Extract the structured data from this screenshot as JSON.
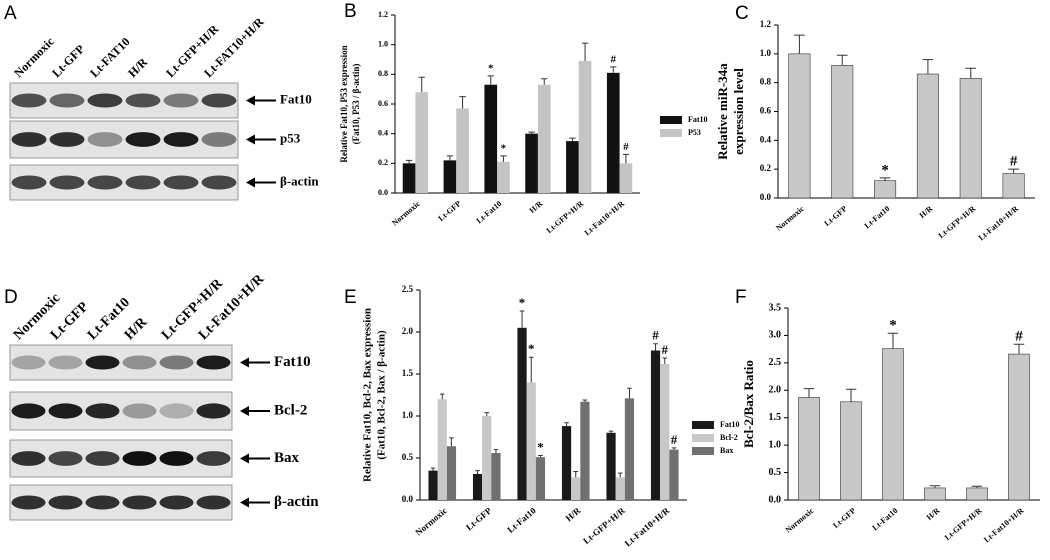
{
  "panel_labels": [
    "A",
    "B",
    "C",
    "D",
    "E",
    "F"
  ],
  "blots": {
    "A": {
      "lanes": [
        "Normoxic",
        "Lt-GFP",
        "Lt-FAT10",
        "H/R",
        "Lt-GFP+H/R",
        "Lt-FAT10+H/R"
      ],
      "bands": [
        "Fat10",
        "p53",
        "β-actin"
      ]
    },
    "D": {
      "lanes": [
        "Normoxic",
        "Lt-GFP",
        "Lt-Fat10",
        "H/R",
        "Lt-GFP+H/R",
        "Lt-Fat10+H/R"
      ],
      "bands": [
        "Fat10",
        "Bcl-2",
        "Bax",
        "β-actin"
      ]
    }
  },
  "chart_data": [
    {
      "type": "bar",
      "ylabel": [
        "Relative Fat10, P53 expression",
        "(Fat10, P53 / β-actin)"
      ],
      "categories": [
        "Normoxic",
        "Lt-GFP",
        "Lt-Fat10",
        "H/R",
        "Lt-GFP+H/R",
        "Lt-Fat10+H/R"
      ],
      "series": [
        {
          "name": "Fat10",
          "color": "#111111",
          "values": [
            0.2,
            0.22,
            0.73,
            0.4,
            0.35,
            0.81
          ],
          "errors": [
            0.02,
            0.03,
            0.06,
            0.01,
            0.02,
            0.04
          ],
          "markers": [
            null,
            null,
            "*",
            null,
            null,
            "#"
          ]
        },
        {
          "name": "P53",
          "color": "#c4c4c4",
          "values": [
            0.68,
            0.57,
            0.21,
            0.73,
            0.89,
            0.2
          ],
          "errors": [
            0.1,
            0.08,
            0.04,
            0.04,
            0.12,
            0.06
          ],
          "markers": [
            null,
            null,
            "*",
            null,
            null,
            "#"
          ]
        }
      ],
      "ylim": [
        0,
        1.2
      ],
      "yticks": [
        {
          "value": 0,
          "label": "0.0"
        },
        0.2,
        0.4,
        0.6,
        0.8,
        {
          "value": 1,
          "label": "1.0"
        },
        1.2
      ]
    },
    {
      "type": "bar",
      "ylabel": [
        "Relative miR-34a",
        "expression level"
      ],
      "categories": [
        "Normoxic",
        "Lt-GFP",
        "Lt-Fat10",
        "H/R",
        "Lt-GFP+H/R",
        "Lt-Fat10+H/R"
      ],
      "series": [
        {
          "color": "#c8c8c8",
          "values": [
            1.0,
            0.92,
            0.12,
            0.86,
            0.83,
            0.17
          ],
          "errors": [
            0.13,
            0.07,
            0.02,
            0.1,
            0.07,
            0.03
          ],
          "markers": [
            null,
            null,
            "*",
            null,
            null,
            "#"
          ]
        }
      ],
      "ylim": [
        0,
        1.2
      ],
      "yticks": [
        {
          "value": 0,
          "label": "0.0"
        },
        0.2,
        0.4,
        0.6,
        0.8,
        {
          "value": 1,
          "label": "1.0"
        },
        1.2
      ]
    },
    {
      "type": "bar",
      "ylabel": [
        "Relative Fat10, Bcl-2, Bax expression",
        "(Fat10, Bcl-2, Bax / β-actin)"
      ],
      "categories": [
        "Normoxic",
        "Lt-GFP",
        "Lt-Fat10",
        "H/R",
        "Lt-GFP+H/R",
        "Lt-Fat10+H/R"
      ],
      "series": [
        {
          "name": "Fat10",
          "color": "#1a1a1a",
          "values": [
            0.35,
            0.31,
            2.05,
            0.88,
            0.8,
            1.78
          ],
          "errors": [
            0.03,
            0.04,
            0.2,
            0.04,
            0.02,
            0.08
          ],
          "markers": [
            null,
            null,
            "*",
            null,
            null,
            "#"
          ]
        },
        {
          "name": "Bcl-2",
          "color": "#c8c8c8",
          "values": [
            1.2,
            1.0,
            1.4,
            0.27,
            0.27,
            1.62
          ],
          "errors": [
            0.06,
            0.04,
            0.3,
            0.07,
            0.05,
            0.07
          ],
          "markers": [
            null,
            null,
            "*",
            null,
            null,
            "#"
          ]
        },
        {
          "name": "Bax",
          "color": "#707070",
          "values": [
            0.64,
            0.56,
            0.51,
            1.17,
            1.21,
            0.6
          ],
          "errors": [
            0.1,
            0.04,
            0.02,
            0.02,
            0.12,
            0.02
          ],
          "markers": [
            null,
            null,
            "*",
            null,
            null,
            "#"
          ]
        }
      ],
      "ylim": [
        0,
        2.5
      ],
      "yticks": [
        {
          "value": 0,
          "label": "0.0"
        },
        0.5,
        {
          "value": 1,
          "label": "1.0"
        },
        1.5,
        {
          "value": 2,
          "label": "2.0"
        },
        2.5
      ]
    },
    {
      "type": "bar",
      "ylabel": [
        "Bcl-2/Bax  Ratio"
      ],
      "categories": [
        "Normoxic",
        "Lt-GFP",
        "Lt-Fat10",
        "H/R",
        "Lt-GFP+H/R",
        "Lt-Fat10+H/R"
      ],
      "series": [
        {
          "color": "#c8c8c8",
          "values": [
            1.87,
            1.79,
            2.76,
            0.22,
            0.22,
            2.66
          ],
          "errors": [
            0.16,
            0.23,
            0.28,
            0.04,
            0.03,
            0.18
          ],
          "markers": [
            null,
            null,
            "*",
            null,
            null,
            "#"
          ]
        }
      ],
      "ylim": [
        0,
        3.5
      ],
      "yticks": [
        {
          "value": 0,
          "label": "0.0"
        },
        0.5,
        {
          "value": 1,
          "label": "1.0"
        },
        1.5,
        {
          "value": 2,
          "label": "2.0"
        },
        2.5,
        {
          "value": 3,
          "label": "3.0"
        },
        3.5
      ]
    }
  ]
}
